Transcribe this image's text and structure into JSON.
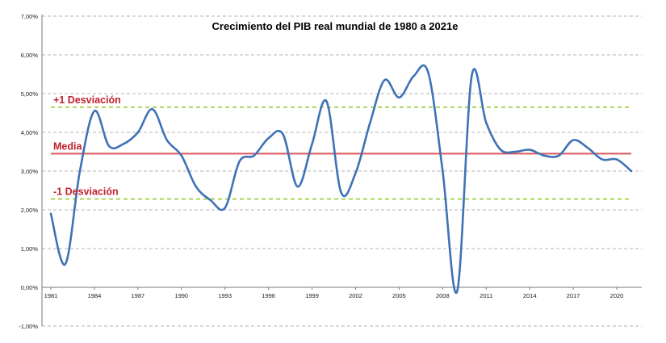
{
  "chart_data": {
    "type": "line",
    "title": "Crecimiento del PIB real mundial de 1980 a 2021e",
    "xlabel": "",
    "ylabel": "",
    "ylim": [
      -1,
      7
    ],
    "xlim": [
      1981,
      2021
    ],
    "y_ticks": [
      "-1,00%",
      "0,00%",
      "1,00%",
      "2,00%",
      "3,00%",
      "4,00%",
      "5,00%",
      "6,00%",
      "7,00%"
    ],
    "x_ticks": [
      "1981",
      "1984",
      "1987",
      "1990",
      "1993",
      "1996",
      "1999",
      "2002",
      "2005",
      "2008",
      "2011",
      "2014",
      "2017",
      "2020"
    ],
    "grid": true,
    "series": [
      {
        "color": "#3f72b6",
        "x": [
          1981,
          1982,
          1983,
          1984,
          1985,
          1986,
          1987,
          1988,
          1989,
          1990,
          1991,
          1992,
          1993,
          1994,
          1995,
          1996,
          1997,
          1998,
          1999,
          2000,
          2001,
          2002,
          2003,
          2004,
          2005,
          2006,
          2007,
          2008,
          2009,
          2010,
          2011,
          2012,
          2013,
          2014,
          2015,
          2016,
          2017,
          2018,
          2019,
          2020,
          2021
        ],
        "values": [
          1.9,
          0.6,
          3.0,
          4.55,
          3.65,
          3.7,
          4.0,
          4.6,
          3.8,
          3.4,
          2.6,
          2.25,
          2.05,
          3.25,
          3.4,
          3.85,
          3.95,
          2.6,
          3.7,
          4.8,
          2.45,
          2.95,
          4.25,
          5.35,
          4.9,
          5.45,
          5.55,
          3.0,
          -0.1,
          5.45,
          4.25,
          3.55,
          3.5,
          3.55,
          3.4,
          3.4,
          3.8,
          3.6,
          3.3,
          3.3,
          3.0
        ]
      }
    ],
    "reference_lines": [
      {
        "label": "+1 Desviación",
        "value": 4.65,
        "color": "#99cc33",
        "style": "dashed"
      },
      {
        "label": "Media",
        "value": 3.45,
        "color": "#d9575d",
        "style": "solid"
      },
      {
        "label": "-1 Desviación",
        "value": 2.28,
        "color": "#99cc33",
        "style": "dashed"
      }
    ],
    "reference_label_colors": "#c0202e"
  }
}
